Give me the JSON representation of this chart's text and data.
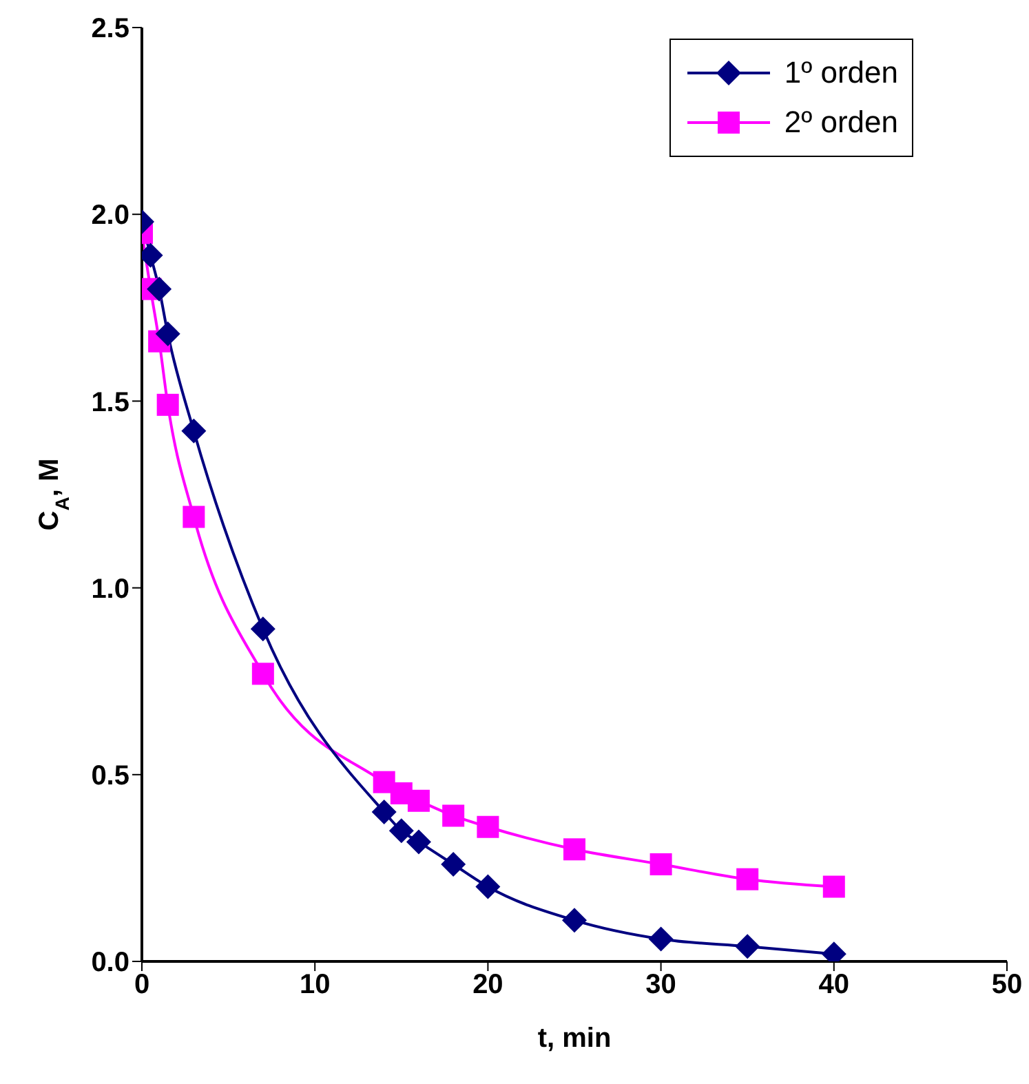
{
  "chart_data": {
    "type": "line",
    "xlabel": "t, min",
    "ylabel": "C$_{A}$, M",
    "xlim": [
      0,
      50
    ],
    "xticks": [
      0,
      10,
      20,
      30,
      40,
      50
    ],
    "ylim": [
      0,
      2.5
    ],
    "yticks": [
      {
        "value": 0,
        "label": "0.0"
      },
      {
        "value": 0.5,
        "label": "0.5"
      },
      {
        "value": 1,
        "label": "1.0"
      },
      {
        "value": 1.5,
        "label": "1.5"
      },
      {
        "value": 2,
        "label": "2.0"
      },
      {
        "value": 2.5,
        "label": "2.5"
      }
    ],
    "grid": false,
    "legend": "top right",
    "series": [
      {
        "name": "1º orden",
        "color": "#000080",
        "marker": "diamond",
        "x": [
          0,
          0.5,
          1,
          1.5,
          3,
          7,
          14,
          15,
          16,
          18,
          20,
          25,
          30,
          35,
          40
        ],
        "values": [
          1.98,
          1.89,
          1.8,
          1.68,
          1.42,
          0.89,
          0.4,
          0.35,
          0.32,
          0.26,
          0.2,
          0.11,
          0.06,
          0.04,
          0.02
        ]
      },
      {
        "name": "2º orden",
        "color": "#ff00ff",
        "marker": "square",
        "x": [
          0,
          0.5,
          1,
          1.5,
          3,
          7,
          14,
          15,
          16,
          18,
          20,
          25,
          30,
          35,
          40
        ],
        "values": [
          1.95,
          1.8,
          1.66,
          1.49,
          1.19,
          0.77,
          0.48,
          0.45,
          0.43,
          0.39,
          0.36,
          0.3,
          0.26,
          0.22,
          0.2
        ]
      }
    ]
  }
}
